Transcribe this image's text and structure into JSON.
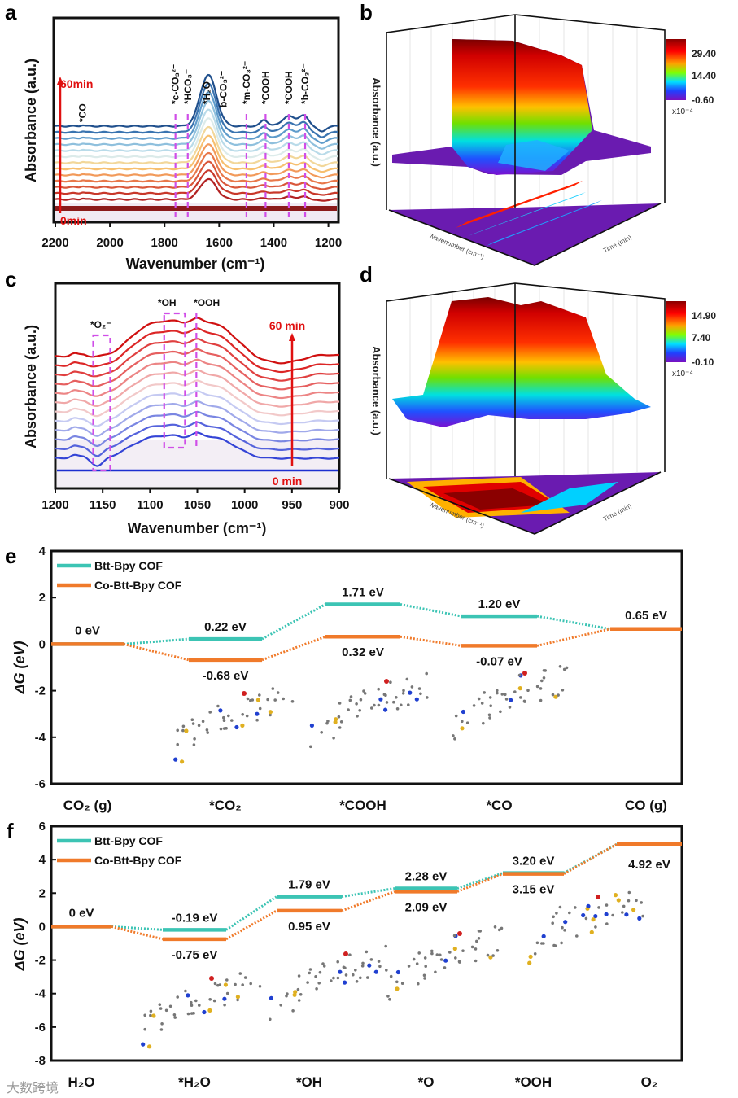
{
  "panels": {
    "a": "a",
    "b": "b",
    "c": "c",
    "d": "d",
    "e": "e",
    "f": "f"
  },
  "watermark": "大数跨境",
  "chart_data": [
    {
      "id": "a",
      "type": "line",
      "xlabel": "Wavenumber (cm⁻¹)",
      "ylabel": "Absorbance (a.u.)",
      "xlim": [
        2200,
        1160
      ],
      "xticks": [
        "2200",
        "2000",
        "1800",
        "1600",
        "1400",
        "1200"
      ],
      "xtick_values": [
        2200,
        2000,
        1800,
        1600,
        1400,
        1200
      ],
      "time_labels": {
        "start": "0min",
        "end": "60min"
      },
      "n_spectra": 14,
      "series_colors": [
        "#8b1a1a",
        "#b22222",
        "#c8382a",
        "#d9573a",
        "#e8784a",
        "#f29a5a",
        "#f7c070",
        "#f2d79a",
        "#dcebea",
        "#b9dbe9",
        "#8fc0dd",
        "#5f9ccb",
        "#3a74b0",
        "#1f4f8c"
      ],
      "main_peak_cm": 1640,
      "annotations": [
        {
          "text": "*CO",
          "x": 2100,
          "dashed": false
        },
        {
          "text": "*c-CO₃²⁻",
          "x": 1760,
          "dashed": true
        },
        {
          "text": "*HCO₃⁻",
          "x": 1715,
          "dashed": true
        },
        {
          "text": "*H₂O",
          "x": 1645,
          "dashed": false
        },
        {
          "text": "b-CO₃²⁻",
          "x": 1585,
          "dashed": false
        },
        {
          "text": "*m-CO₃²⁻",
          "x": 1500,
          "dashed": true
        },
        {
          "text": "*COOH",
          "x": 1430,
          "dashed": true
        },
        {
          "text": "*COOH",
          "x": 1345,
          "dashed": true
        },
        {
          "text": "*b-CO₃²⁻",
          "x": 1285,
          "dashed": true
        }
      ]
    },
    {
      "id": "b",
      "type": "surface3d",
      "zlabel": "Absorbance (a.u.)",
      "xlabel": "Wavenumber (cm⁻¹)",
      "ylabel": "Time (min)",
      "colorbar": {
        "ticks": [
          "29.40",
          "14.40",
          "-0.60"
        ],
        "scale": "x10⁻⁴"
      }
    },
    {
      "id": "c",
      "type": "line",
      "xlabel": "Wavenumber (cm⁻¹)",
      "ylabel": "Absorbance (a.u.)",
      "xlim": [
        1200,
        900
      ],
      "xticks": [
        "1200",
        "1150",
        "1100",
        "1050",
        "1000",
        "950",
        "900"
      ],
      "xtick_values": [
        1200,
        1150,
        1100,
        1050,
        1000,
        950,
        900
      ],
      "time_labels": {
        "start": "0 min",
        "end": "60 min"
      },
      "n_spectra": 13,
      "series_colors": [
        "#1d2fd0",
        "#3444d6",
        "#5563dc",
        "#7a86e2",
        "#a0a9ea",
        "#c5caf2",
        "#f2c9c9",
        "#f0a8a8",
        "#ec8585",
        "#e66060",
        "#e04040",
        "#dc2626",
        "#d01010"
      ],
      "annotations": [
        {
          "text": "*O₂⁻",
          "x": 1151
        },
        {
          "text": "*OH",
          "x": 1075
        },
        {
          "text": "*OOH",
          "x": 1052
        }
      ]
    },
    {
      "id": "d",
      "type": "surface3d",
      "zlabel": "Absorbance (a.u.)",
      "xlabel": "Wavenumber (cm⁻¹)",
      "ylabel": "Time (min)",
      "colorbar": {
        "ticks": [
          "14.90",
          "7.40",
          "-0.10"
        ],
        "scale": "x10⁻⁴"
      }
    },
    {
      "id": "e",
      "type": "energy_diagram",
      "ylabel": "ΔG (eV)",
      "ylim": [
        -6,
        4
      ],
      "yticks": [
        "4",
        "2",
        "0",
        "-2",
        "-4",
        "-6"
      ],
      "ytick_values": [
        4,
        2,
        0,
        -2,
        -4,
        -6
      ],
      "categories": [
        "CO₂ (g)",
        "*CO₂",
        "*COOH",
        "*CO",
        "CO (g)"
      ],
      "series": [
        {
          "name": "Btt-Bpy COF",
          "color": "#3cc4b4",
          "values": [
            0,
            0.22,
            1.71,
            1.2,
            0.65
          ],
          "labels": [
            "0 eV",
            "0.22 eV",
            "1.71 eV",
            "1.20 eV",
            "0.65 eV"
          ]
        },
        {
          "name": "Co-Btt-Bpy COF",
          "color": "#f07a2a",
          "values": [
            0,
            -0.68,
            0.32,
            -0.07,
            0.65
          ],
          "labels": [
            "0 eV",
            "-0.68 eV",
            "0.32 eV",
            "-0.07 eV",
            "0.65 eV"
          ]
        }
      ],
      "legend": "top-left"
    },
    {
      "id": "f",
      "type": "energy_diagram",
      "ylabel": "ΔG (eV)",
      "ylim": [
        -8,
        6
      ],
      "yticks": [
        "6",
        "4",
        "2",
        "0",
        "-2",
        "-4",
        "-6",
        "-8"
      ],
      "ytick_values": [
        6,
        4,
        2,
        0,
        -2,
        -4,
        -6,
        -8
      ],
      "categories": [
        "H₂O",
        "*H₂O",
        "*OH",
        "*O",
        "*OOH",
        "O₂"
      ],
      "series": [
        {
          "name": "Btt-Bpy COF",
          "color": "#3cc4b4",
          "values": [
            0,
            -0.19,
            1.79,
            2.28,
            3.2,
            4.92
          ],
          "labels": [
            "0 eV",
            "-0.19 eV",
            "1.79 eV",
            "2.28 eV",
            "3.20 eV",
            "4.92 eV"
          ]
        },
        {
          "name": "Co-Btt-Bpy COF",
          "color": "#f07a2a",
          "values": [
            0,
            -0.75,
            0.95,
            2.09,
            3.15,
            4.92
          ],
          "labels": [
            "0 eV",
            "-0.75 eV",
            "0.95 eV",
            "2.09 eV",
            "3.15 eV",
            "4.92 eV"
          ]
        }
      ],
      "legend": "top-left"
    }
  ]
}
